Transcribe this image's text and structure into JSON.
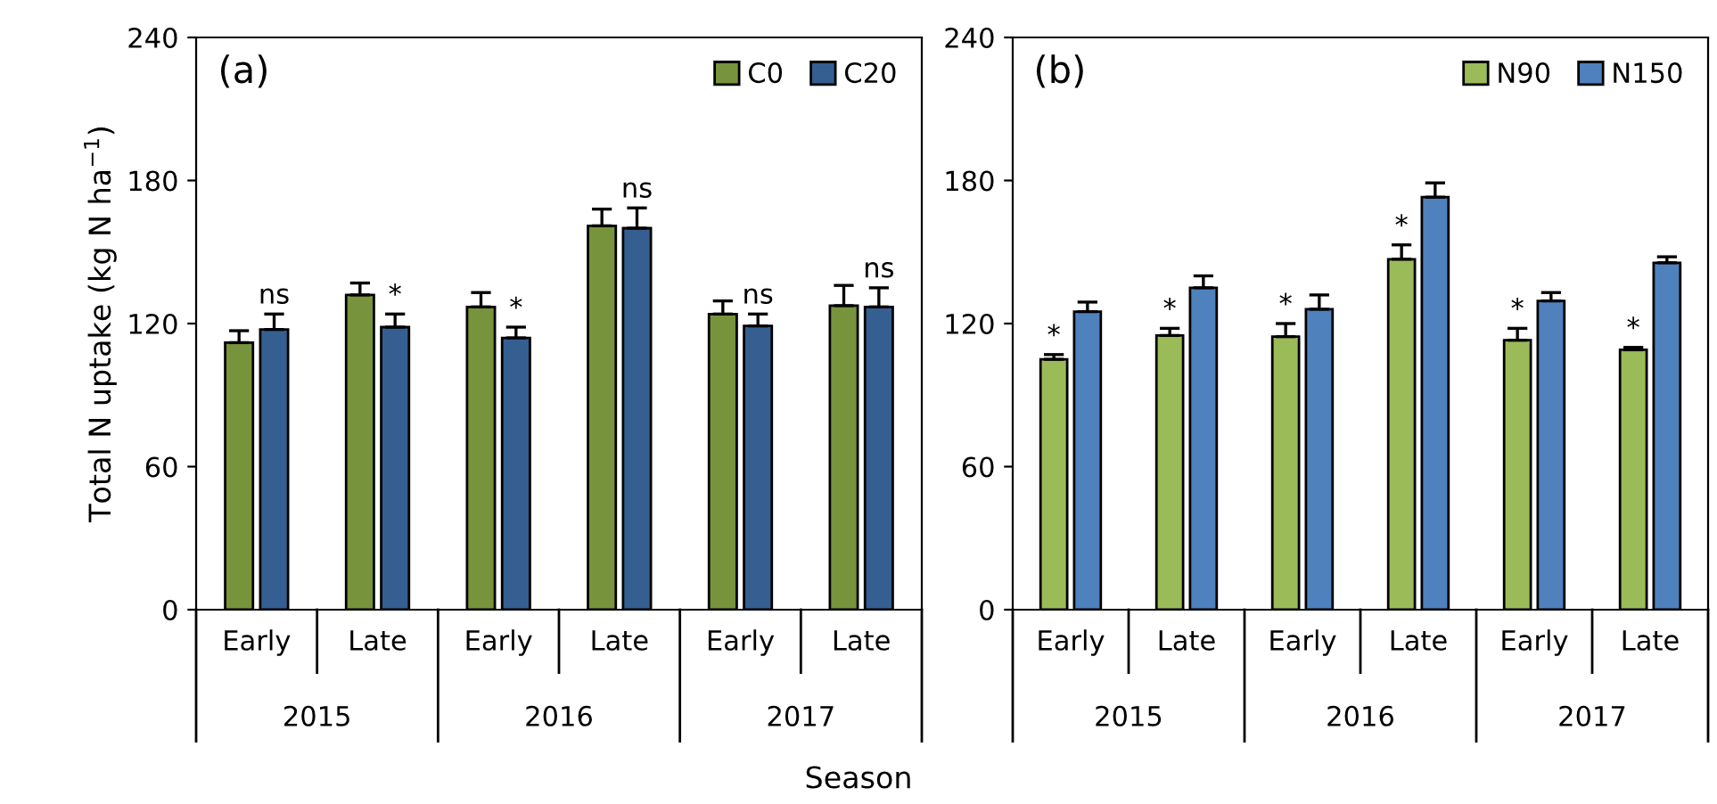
{
  "chart_data": [
    {
      "type": "bar",
      "title": "(a)",
      "ylabel": "Total N uptake (kg N ha$^{−1}$)",
      "xlabel": "Season",
      "categories": [
        "Early",
        "Late",
        "Early",
        "Late",
        "Early",
        "Late"
      ],
      "annotations": [
        "2015",
        "2016",
        "2017"
      ],
      "series": [
        {
          "name": "C0",
          "color": "#77933c",
          "values": [
            112,
            132,
            127,
            161,
            124,
            127.5
          ],
          "errors": [
            [
              112,
              117
            ],
            [
              132,
              137
            ],
            [
              127,
              133
            ],
            [
              161,
              168
            ],
            [
              124,
              129.5
            ],
            [
              127.5,
              136
            ]
          ]
        },
        {
          "name": "C20",
          "color": "#355f91",
          "values": [
            117.5,
            118.5,
            114,
            160,
            119,
            127
          ],
          "errors": [
            [
              117.5,
              124
            ],
            [
              118.5,
              124
            ],
            [
              114,
              118.5
            ],
            [
              160,
              168.5
            ],
            [
              119,
              124
            ],
            [
              127,
              135
            ]
          ],
          "value_labels": [
            "ns",
            "*",
            "*",
            "ns",
            "ns",
            "ns"
          ]
        }
      ],
      "ylim": [
        0,
        240
      ],
      "yticks": [
        0,
        60,
        120,
        180,
        240
      ],
      "legend": "top right",
      "grid": false
    },
    {
      "type": "bar",
      "title": "(b)",
      "categories": [
        "Early",
        "Late",
        "Early",
        "Late",
        "Early",
        "Late"
      ],
      "annotations": [
        "2015",
        "2016",
        "2017"
      ],
      "series": [
        {
          "name": "N90",
          "color": "#9bbb59",
          "values": [
            105,
            115,
            114.5,
            147,
            113,
            109
          ],
          "errors": [
            [
              105,
              107
            ],
            [
              115,
              118
            ],
            [
              114.5,
              120
            ],
            [
              147,
              153
            ],
            [
              113,
              118
            ],
            [
              109,
              110
            ]
          ],
          "value_labels": [
            "*",
            "*",
            "*",
            "*",
            "*",
            "*"
          ]
        },
        {
          "name": "N150",
          "color": "#4f81bd",
          "values": [
            125,
            135,
            126,
            173,
            129.5,
            145.5
          ],
          "errors": [
            [
              125,
              129
            ],
            [
              135,
              140
            ],
            [
              126,
              132
            ],
            [
              173,
              179
            ],
            [
              129.5,
              133
            ],
            [
              145.5,
              148
            ]
          ]
        }
      ],
      "ylim": [
        0,
        240
      ],
      "yticks": [
        0,
        60,
        120,
        180,
        240
      ],
      "legend": "top right",
      "grid": false
    }
  ]
}
